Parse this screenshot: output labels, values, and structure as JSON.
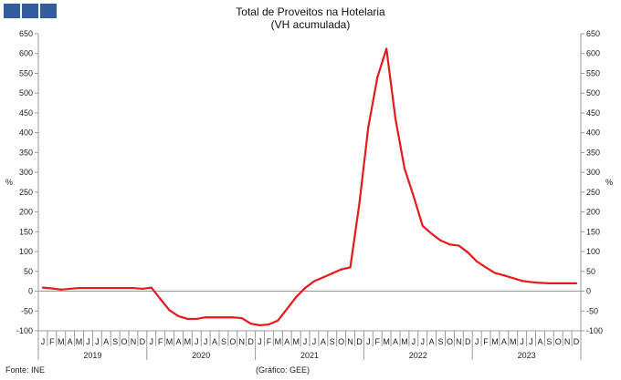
{
  "logo": {
    "colors": [
      "#2f5d9e",
      "#2f5d9e",
      "#2f5d9e"
    ]
  },
  "footer": {
    "source": "Fonte: INE",
    "credit": "(Gráfico: GEE)"
  },
  "chart_data": {
    "type": "line",
    "title": "Total de Proveitos na Hotelaria",
    "subtitle": "(VH acumulada)",
    "ylabel_left": "%",
    "ylabel_right": "%",
    "ylim": [
      -100,
      650
    ],
    "yticks": [
      -100,
      -50,
      0,
      50,
      100,
      150,
      200,
      250,
      300,
      350,
      400,
      450,
      500,
      550,
      600,
      650
    ],
    "month_labels": [
      "J",
      "F",
      "M",
      "A",
      "M",
      "J",
      "J",
      "A",
      "S",
      "O",
      "N",
      "D"
    ],
    "years": [
      "2019",
      "2020",
      "2021",
      "2022",
      "2023"
    ],
    "grid": false,
    "series": [
      {
        "color": "#e41a1c",
        "values": [
          9,
          7,
          4,
          6,
          8,
          8,
          8,
          8,
          8,
          8,
          8,
          6,
          9,
          -20,
          -48,
          -63,
          -70,
          -70,
          -66,
          -66,
          -66,
          -66,
          -68,
          -82,
          -86,
          -84,
          -74,
          -45,
          -15,
          8,
          25,
          35,
          45,
          55,
          60,
          220,
          415,
          540,
          612,
          435,
          310,
          240,
          165,
          145,
          128,
          118,
          115,
          98,
          75,
          60,
          46,
          40,
          33,
          26,
          23,
          21,
          20,
          20,
          20,
          20
        ]
      }
    ]
  }
}
